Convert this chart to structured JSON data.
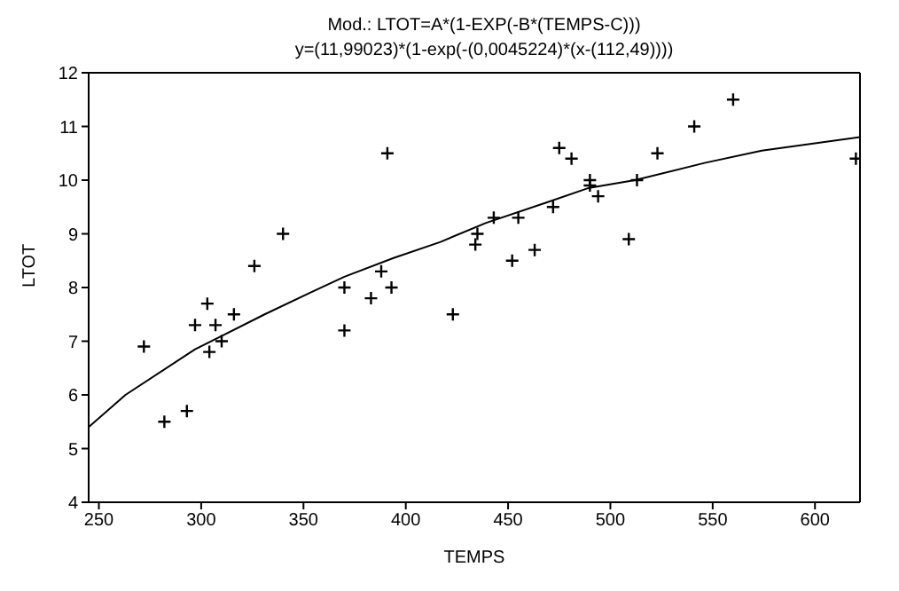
{
  "chart_data": {
    "type": "scatter",
    "title": "Mod.: LTOT=A*(1-EXP(-B*(TEMPS-C)))",
    "subtitle": "y=(11,99023)*(1-exp(-(0,0045224)*(x-(112,49))))",
    "xlabel": "TEMPS",
    "ylabel": "LTOT",
    "marker": "cross",
    "grid": false,
    "legend": false,
    "xlim": [
      245,
      622
    ],
    "xticks": [
      250,
      300,
      350,
      400,
      450,
      500,
      550,
      600
    ],
    "ylim": [
      4,
      12
    ],
    "yticks": [
      4,
      5,
      6,
      7,
      8,
      9,
      10,
      11,
      12
    ],
    "series": [
      {
        "color": "#000000",
        "x": [
          272,
          282,
          293,
          297,
          303,
          304,
          307,
          310,
          316,
          326,
          340,
          370,
          370,
          383,
          388,
          391,
          393,
          423,
          434,
          435,
          443,
          452,
          455,
          463,
          472,
          475,
          481,
          490,
          490,
          494,
          509,
          513,
          523,
          541,
          560,
          620
        ],
        "values": [
          6.9,
          5.5,
          5.7,
          7.3,
          7.7,
          6.8,
          7.3,
          7.0,
          7.5,
          8.4,
          9.0,
          8.0,
          7.2,
          7.8,
          8.3,
          10.5,
          8.0,
          7.5,
          8.8,
          9.0,
          9.3,
          8.5,
          9.3,
          8.7,
          9.5,
          10.6,
          10.4,
          10.0,
          9.9,
          9.7,
          8.9,
          10.0,
          10.5,
          11.0,
          11.5,
          10.4
        ]
      },
      {
        "type": "line",
        "marker": "none",
        "color": "#000000",
        "x": [
          245,
          263,
          297,
          331,
          353,
          370,
          394,
          417,
          439,
          470,
          489,
          512,
          546,
          574,
          622
        ],
        "values": [
          5.4,
          6.0,
          6.85,
          7.5,
          7.9,
          8.2,
          8.55,
          8.85,
          9.2,
          9.6,
          9.85,
          10.0,
          10.32,
          10.55,
          10.8
        ]
      }
    ]
  }
}
